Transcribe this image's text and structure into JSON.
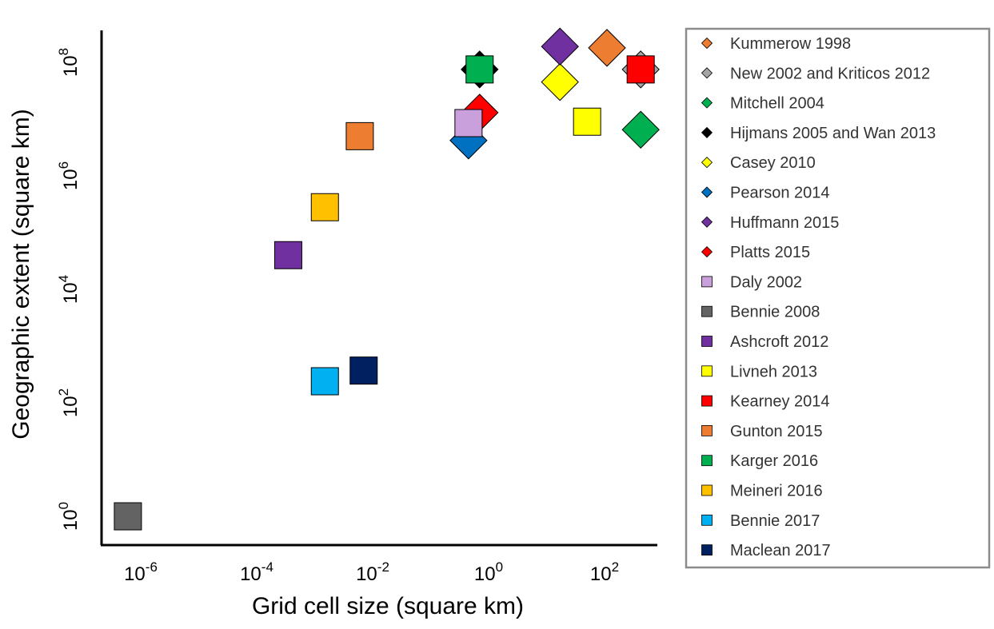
{
  "chart_data": {
    "type": "scatter",
    "title": "",
    "xlabel": "Grid cell size (square km)",
    "ylabel": "Geographic extent (square km)",
    "x_scale": "log",
    "y_scale": "log",
    "xlim": [
      2e-07,
      1000
    ],
    "ylim": [
      0.3,
      200000000.0
    ],
    "x_ticks": [
      {
        "value": 1e-06,
        "base": "10",
        "exp": "-6"
      },
      {
        "value": 0.0001,
        "base": "10",
        "exp": "-4"
      },
      {
        "value": 0.01,
        "base": "10",
        "exp": "-2"
      },
      {
        "value": 1,
        "base": "10",
        "exp": "0"
      },
      {
        "value": 100,
        "base": "10",
        "exp": "2"
      }
    ],
    "y_ticks": [
      {
        "value": 1,
        "base": "10",
        "exp": "0"
      },
      {
        "value": 100,
        "base": "10",
        "exp": "2"
      },
      {
        "value": 10000,
        "base": "10",
        "exp": "4"
      },
      {
        "value": 1000000,
        "base": "10",
        "exp": "6"
      },
      {
        "value": 100000000,
        "base": "10",
        "exp": "8"
      }
    ],
    "grid": false,
    "legend_position": "right",
    "series": [
      {
        "name": "Kummerow 1998",
        "marker": "diamond",
        "color": "#ED7D31",
        "x": 110,
        "y": 180000000
      },
      {
        "name": "New 2002 and Kriticos 2012",
        "marker": "diamond",
        "color": "#A6A6A6",
        "x": 420,
        "y": 75000000
      },
      {
        "name": "Mitchell 2004",
        "marker": "diamond",
        "color": "#00B050",
        "x": 420,
        "y": 6500000
      },
      {
        "name": "Hijmans 2005 and Wan 2013",
        "marker": "diamond",
        "color": "#000000",
        "x": 0.7,
        "y": 75000000
      },
      {
        "name": "Casey 2010",
        "marker": "diamond",
        "color": "#FFFF00",
        "x": 17,
        "y": 45000000
      },
      {
        "name": "Pearson 2014",
        "marker": "diamond",
        "color": "#0070C0",
        "x": 0.45,
        "y": 4200000
      },
      {
        "name": "Huffmann 2015",
        "marker": "diamond",
        "color": "#7030A0",
        "x": 17,
        "y": 190000000
      },
      {
        "name": "Platts 2015",
        "marker": "diamond",
        "color": "#FF0000",
        "x": 0.7,
        "y": 13000000
      },
      {
        "name": "Daly 2002",
        "marker": "square",
        "color": "#C9A0DC",
        "x": 0.45,
        "y": 8500000
      },
      {
        "name": "Bennie 2008",
        "marker": "square",
        "color": "#636363",
        "x": 6e-07,
        "y": 1
      },
      {
        "name": "Ashcroft 2012",
        "marker": "square",
        "color": "#7030A0",
        "x": 0.00035,
        "y": 40000
      },
      {
        "name": "Livneh 2013",
        "marker": "square",
        "color": "#FFFF00",
        "x": 50,
        "y": 9000000
      },
      {
        "name": "Kearney 2014",
        "marker": "square",
        "color": "#FF0000",
        "x": 420,
        "y": 75000000
      },
      {
        "name": "Gunton 2015",
        "marker": "square",
        "color": "#ED7D31",
        "x": 0.006,
        "y": 5000000
      },
      {
        "name": "Karger 2016",
        "marker": "square",
        "color": "#00B050",
        "x": 0.7,
        "y": 75000000
      },
      {
        "name": "Meineri 2016",
        "marker": "square",
        "color": "#FFC000",
        "x": 0.0015,
        "y": 280000
      },
      {
        "name": "Bennie 2017",
        "marker": "square",
        "color": "#00B0F0",
        "x": 0.0015,
        "y": 240
      },
      {
        "name": "Maclean 2017",
        "marker": "square",
        "color": "#002060",
        "x": 0.007,
        "y": 370
      }
    ],
    "draw_order": [
      "Bennie 2008",
      "Bennie 2017",
      "Maclean 2017",
      "Ashcroft 2012",
      "Meineri 2016",
      "Gunton 2015",
      "Pearson 2014",
      "Platts 2015",
      "Daly 2002",
      "Hijmans 2005 and Wan 2013",
      "Karger 2016",
      "Livneh 2013",
      "Casey 2010",
      "Huffmann 2015",
      "Kummerow 1998",
      "Mitchell 2004",
      "New 2002 and Kriticos 2012",
      "Kearney 2014"
    ]
  }
}
